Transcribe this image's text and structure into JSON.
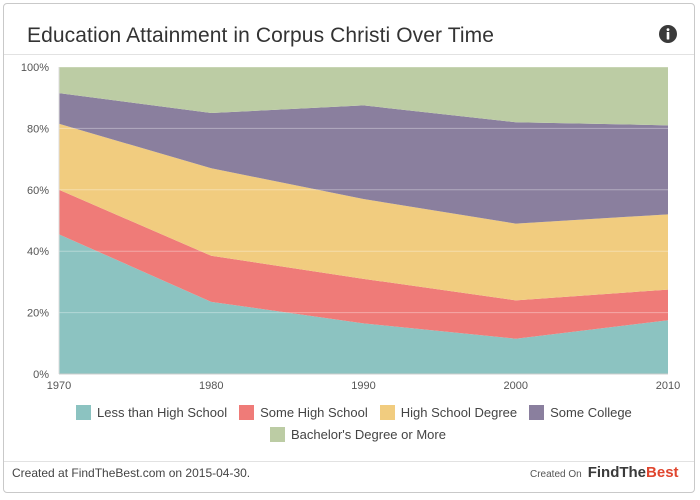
{
  "header": {
    "title": "Education Attainment in Corpus Christi Over Time",
    "info_icon": "info-icon"
  },
  "footer": {
    "created_text": "Created at FindTheBest.com on 2015-04-30.",
    "created_on_label": "Created On",
    "brand_part1": "FindThe",
    "brand_part2": "Best"
  },
  "chart_data": {
    "type": "area",
    "stacked": true,
    "normalized_percent": true,
    "title": "Education Attainment in Corpus Christi Over Time",
    "x": [
      1970,
      1980,
      1990,
      2000,
      2010
    ],
    "x_ticks": [
      "1970",
      "1980",
      "1990",
      "2000",
      "2010"
    ],
    "y_ticks": [
      "0%",
      "20%",
      "40%",
      "60%",
      "80%",
      "100%"
    ],
    "ylim": [
      0,
      100
    ],
    "grid": true,
    "legend_position": "bottom",
    "series": [
      {
        "name": "Less than High School",
        "color": "#8cc3c1",
        "values": [
          45.5,
          23.5,
          16.5,
          11.5,
          17.5
        ]
      },
      {
        "name": "Some High School",
        "color": "#ef7b78",
        "values": [
          14.5,
          15.0,
          14.5,
          12.5,
          10.0
        ]
      },
      {
        "name": "High School Degree",
        "color": "#f1cc7f",
        "values": [
          21.5,
          28.5,
          26.0,
          25.0,
          24.5
        ]
      },
      {
        "name": "Some College",
        "color": "#8a7f9e",
        "values": [
          10.0,
          18.0,
          30.5,
          33.0,
          29.0
        ]
      },
      {
        "name": "Bachelor's Degree or More",
        "color": "#bccca4",
        "values": [
          8.5,
          15.0,
          12.5,
          18.0,
          19.0
        ]
      }
    ]
  }
}
